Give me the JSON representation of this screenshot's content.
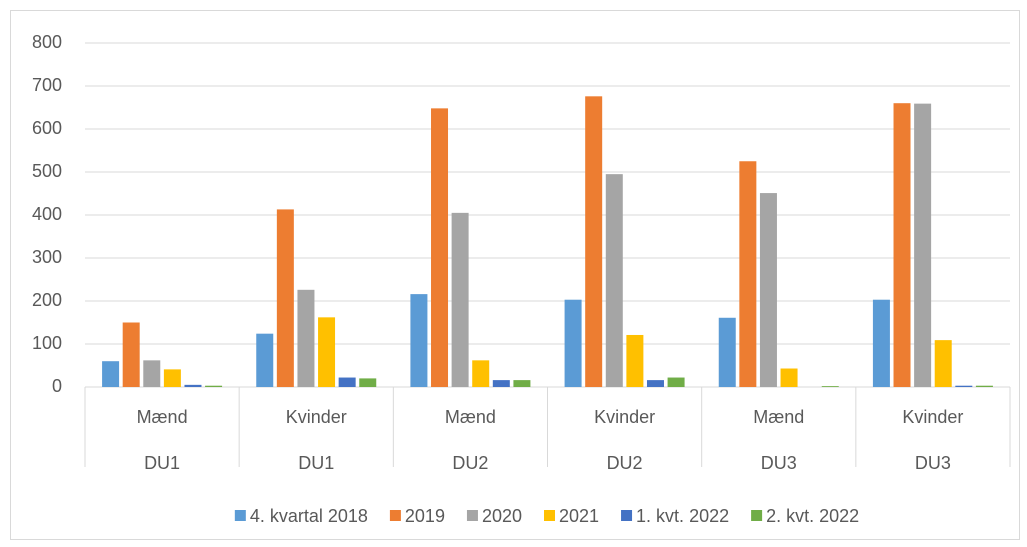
{
  "chart_data": {
    "type": "bar",
    "categories": [
      "Mænd",
      "Kvinder",
      "Mænd",
      "Kvinder",
      "Mænd",
      "Kvinder"
    ],
    "category_groups": [
      "DU1",
      "DU1",
      "DU2",
      "DU2",
      "DU3",
      "DU3"
    ],
    "series": [
      {
        "name": "4. kvartal 2018",
        "color": "#5b9bd5",
        "values": [
          60,
          124,
          216,
          203,
          161,
          203
        ]
      },
      {
        "name": "2019",
        "color": "#ed7d31",
        "values": [
          150,
          413,
          648,
          676,
          525,
          660
        ]
      },
      {
        "name": "2020",
        "color": "#a5a5a5",
        "values": [
          62,
          226,
          405,
          495,
          451,
          659
        ]
      },
      {
        "name": "2021",
        "color": "#ffc000",
        "values": [
          41,
          162,
          62,
          121,
          43,
          109
        ]
      },
      {
        "name": "1. kvt. 2022",
        "color": "#4472c4",
        "values": [
          5,
          22,
          16,
          16,
          0,
          3
        ]
      },
      {
        "name": "2. kvt. 2022",
        "color": "#70ad47",
        "values": [
          3,
          20,
          16,
          22,
          2,
          3
        ]
      }
    ],
    "ylim": [
      0,
      800
    ],
    "yticks": [
      0,
      100,
      200,
      300,
      400,
      500,
      600,
      700,
      800
    ],
    "grid": true,
    "legend": "bottom"
  }
}
